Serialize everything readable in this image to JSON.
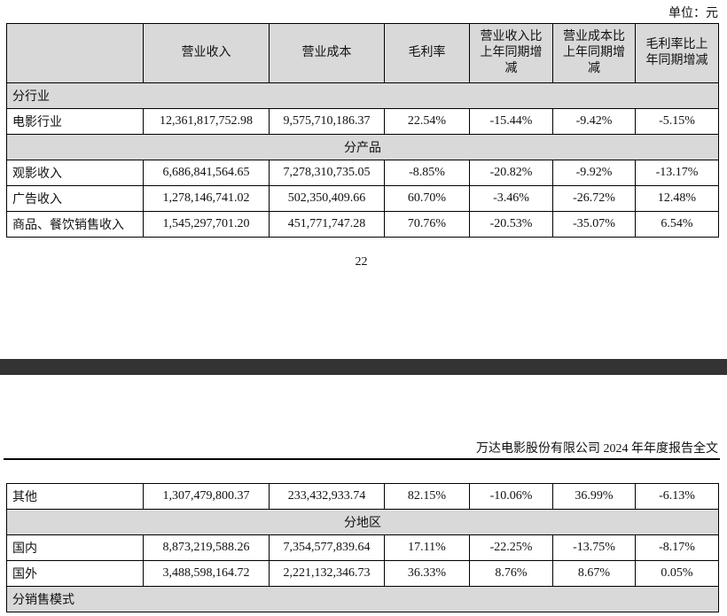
{
  "unit_label": "单位：元",
  "page_number": "22",
  "running_header": "万达电影股份有限公司 2024 年年度报告全文",
  "columns": [
    "",
    "营业收入",
    "营业成本",
    "毛利率",
    "营业收入比上年同期增减",
    "营业成本比上年同期增减",
    "毛利率比上年同期增减"
  ],
  "table1": [
    {
      "type": "section",
      "align": "left",
      "label": "分行业"
    },
    {
      "type": "row",
      "cells": [
        "电影行业",
        "12,361,817,752.98",
        "9,575,710,186.37",
        "22.54%",
        "-15.44%",
        "-9.42%",
        "-5.15%"
      ]
    },
    {
      "type": "section",
      "align": "center",
      "label": "分产品"
    },
    {
      "type": "row",
      "cells": [
        "观影收入",
        "6,686,841,564.65",
        "7,278,310,735.05",
        "-8.85%",
        "-20.82%",
        "-9.92%",
        "-13.17%"
      ]
    },
    {
      "type": "row",
      "cells": [
        "广告收入",
        "1,278,146,741.02",
        "502,350,409.66",
        "60.70%",
        "-3.46%",
        "-26.72%",
        "12.48%"
      ]
    },
    {
      "type": "row",
      "cells": [
        "商品、餐饮销售收入",
        "1,545,297,701.20",
        "451,771,747.28",
        "70.76%",
        "-20.53%",
        "-35.07%",
        "6.54%"
      ]
    }
  ],
  "table2": [
    {
      "type": "row",
      "cells": [
        "其他",
        "1,307,479,800.37",
        "233,432,933.74",
        "82.15%",
        "-10.06%",
        "36.99%",
        "-6.13%"
      ]
    },
    {
      "type": "section",
      "align": "center",
      "label": "分地区"
    },
    {
      "type": "row",
      "cells": [
        "国内",
        "8,873,219,588.26",
        "7,354,577,839.64",
        "17.11%",
        "-22.25%",
        "-13.75%",
        "-8.17%"
      ]
    },
    {
      "type": "row",
      "cells": [
        "国外",
        "3,488,598,164.72",
        "2,221,132,346.73",
        "36.33%",
        "8.76%",
        "8.67%",
        "0.05%"
      ]
    },
    {
      "type": "section",
      "align": "left",
      "label": "分销售模式"
    }
  ]
}
